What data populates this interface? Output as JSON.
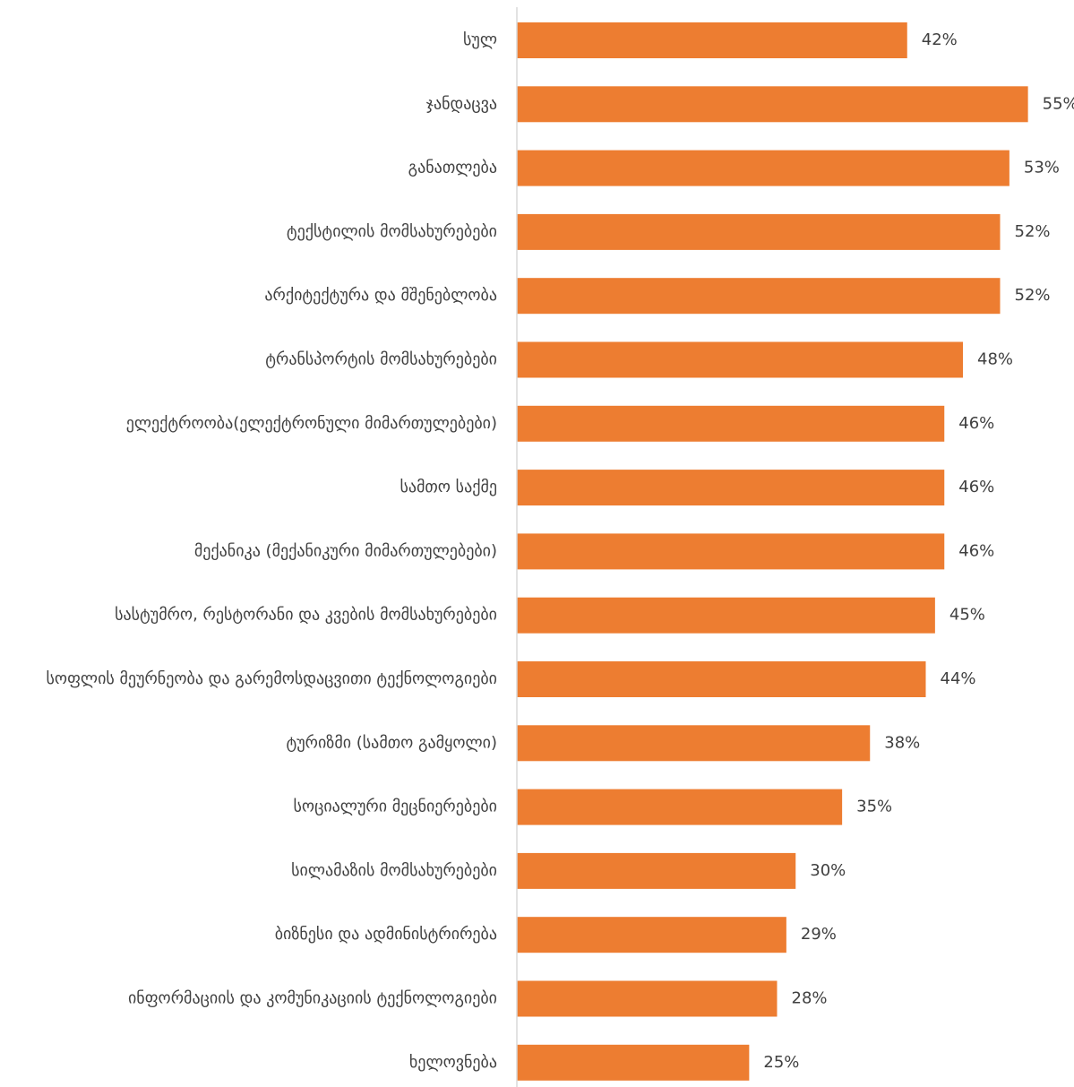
{
  "chart_data": {
    "type": "bar",
    "orientation": "horizontal",
    "bar_color": "#ED7D31",
    "axis_color": "#D9D9D9",
    "text_color": "#404040",
    "grid": false,
    "xlim": [
      0,
      57
    ],
    "categories": [
      "სულ",
      "ჯანდაცვა",
      "განათლება",
      "ტექსტილის მომსახურებები",
      "არქიტექტურა და მშენებლობა",
      "ტრანსპორტის მომსახურებები",
      "ელექტროობა(ელექტრონული მიმართულებები)",
      "სამთო საქმე",
      "მექანიკა (მექანიკური მიმართულებები)",
      "სასტუმრო, რესტორანი და კვების მომსახურებები",
      "სოფლის მეურნეობა და გარემოსდაცვითი ტექნოლოგიები",
      "ტურიზმი (სამთო გამყოლი)",
      "სოციალური მეცნიერებები",
      "სილამაზის მომსახურებები",
      "ბიზნესი და ადმინისტრირება",
      "ინფორმაციის და კომუნიკაციის ტექნოლოგიები",
      "ხელოვნება"
    ],
    "values": [
      42,
      55,
      53,
      52,
      52,
      48,
      46,
      46,
      46,
      45,
      44,
      38,
      35,
      30,
      29,
      28,
      25
    ],
    "value_labels": [
      "42%",
      "55%",
      "53%",
      "52%",
      "52%",
      "48%",
      "46%",
      "46%",
      "46%",
      "45%",
      "44%",
      "38%",
      "35%",
      "30%",
      "29%",
      "28%",
      "25%"
    ]
  }
}
